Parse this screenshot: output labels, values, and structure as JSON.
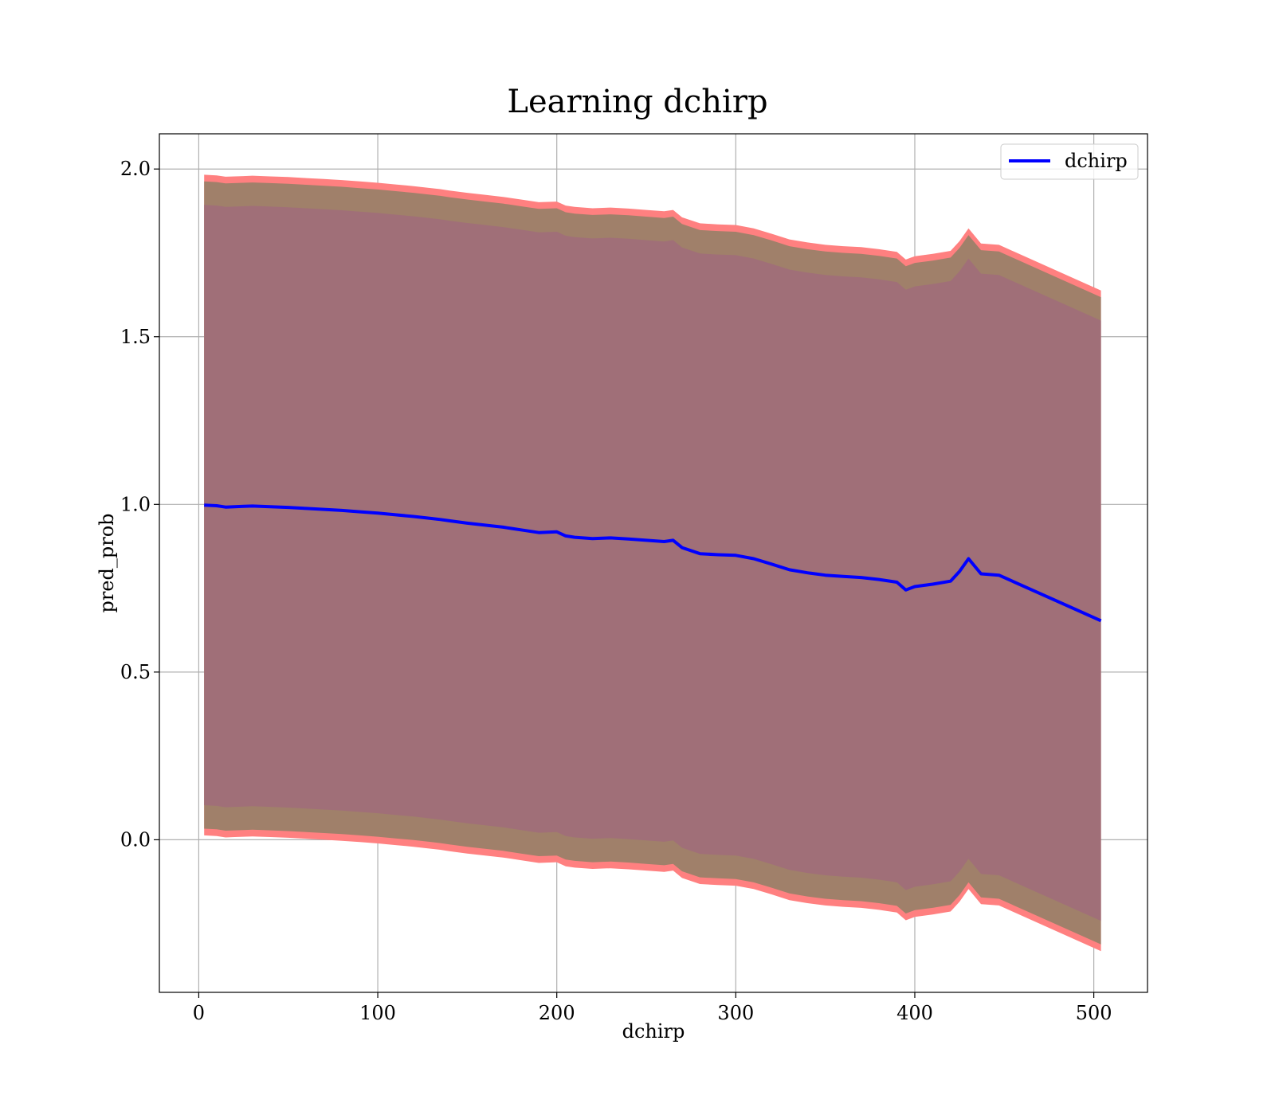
{
  "chart_data": {
    "type": "line",
    "title": "Learning dchirp",
    "xlabel": "dchirp",
    "ylabel": "pred_prob",
    "xlim": [
      -22,
      530
    ],
    "ylim": [
      -0.455,
      2.105
    ],
    "xticks": [
      0,
      100,
      200,
      300,
      400,
      500
    ],
    "yticks": [
      0.0,
      0.5,
      1.0,
      1.5,
      2.0
    ],
    "xtick_labels": [
      "0",
      "100",
      "200",
      "300",
      "400",
      "500"
    ],
    "ytick_labels": [
      "0.0",
      "0.5",
      "1.0",
      "1.5",
      "2.0"
    ],
    "grid": true,
    "legend_position": "upper right",
    "series": [
      {
        "name": "dchirp",
        "color": "#0000ff",
        "x": [
          3,
          10,
          15,
          20,
          25,
          30,
          40,
          50,
          60,
          70,
          80,
          90,
          100,
          110,
          120,
          130,
          135,
          140,
          150,
          160,
          170,
          175,
          180,
          190,
          200,
          205,
          210,
          220,
          230,
          240,
          250,
          260,
          265,
          270,
          280,
          290,
          300,
          310,
          320,
          330,
          340,
          350,
          360,
          370,
          380,
          390,
          395,
          400,
          410,
          420,
          425,
          430,
          437,
          447,
          504
        ],
        "y": [
          0.998,
          0.996,
          0.992,
          0.993,
          0.994,
          0.995,
          0.993,
          0.991,
          0.988,
          0.985,
          0.982,
          0.978,
          0.974,
          0.969,
          0.964,
          0.958,
          0.955,
          0.951,
          0.944,
          0.938,
          0.932,
          0.928,
          0.924,
          0.916,
          0.918,
          0.906,
          0.902,
          0.898,
          0.9,
          0.897,
          0.893,
          0.889,
          0.893,
          0.871,
          0.853,
          0.85,
          0.848,
          0.838,
          0.822,
          0.805,
          0.796,
          0.789,
          0.785,
          0.782,
          0.776,
          0.768,
          0.745,
          0.755,
          0.762,
          0.771,
          0.8,
          0.838,
          0.793,
          0.789,
          0.653
        ]
      }
    ],
    "bands": [
      {
        "description_color": "#ff0000",
        "color": "#ff8080",
        "offset": 0.985
      },
      {
        "color": "#a0806a",
        "offset": 0.965
      },
      {
        "color": "#a06f78",
        "offset": 0.895
      }
    ]
  }
}
